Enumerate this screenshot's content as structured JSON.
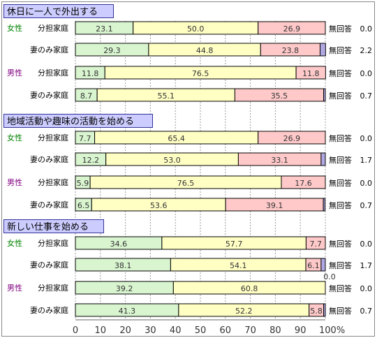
{
  "chart_data": {
    "type": "bar",
    "orientation": "horizontal",
    "stacked": true,
    "xlim": [
      0,
      100
    ],
    "x_ticks": [
      "0",
      "10",
      "20",
      "30",
      "40",
      "50",
      "60",
      "70",
      "80",
      "90",
      "100%"
    ],
    "no_answer_label": "無回答",
    "colors": {
      "segment1": "#d9f5d0",
      "segment2": "#ffffc4",
      "segment3": "#ffc9c9",
      "no_answer": "#b0a8e0",
      "female_label": "#008000",
      "male_label": "#800080",
      "section_header_bg": "#ccccff",
      "border": "#000000",
      "grid": "#999999"
    },
    "sections": [
      {
        "title": "休日に一人で外出する",
        "rows": [
          {
            "gender": "女性",
            "group": "分担家庭",
            "values": [
              23.1,
              50.0,
              26.9
            ],
            "no_answer": 0.0,
            "labels": [
              "23.1",
              "50.0",
              "26.9"
            ],
            "no_answer_label": "0.0"
          },
          {
            "gender": "",
            "group": "妻のみ家庭",
            "values": [
              29.3,
              44.8,
              23.8
            ],
            "no_answer": 2.2,
            "labels": [
              "29.3",
              "44.8",
              "23.8"
            ],
            "no_answer_label": "2.2"
          },
          {
            "gender": "男性",
            "group": "分担家庭",
            "values": [
              11.8,
              76.5,
              11.8
            ],
            "no_answer": 0.0,
            "labels": [
              "11.8",
              "76.5",
              "11.8"
            ],
            "no_answer_label": "0.0"
          },
          {
            "gender": "",
            "group": "妻のみ家庭",
            "values": [
              8.7,
              55.1,
              35.5
            ],
            "no_answer": 0.7,
            "labels": [
              "8.7",
              "55.1",
              "35.5"
            ],
            "no_answer_label": "0.7"
          }
        ]
      },
      {
        "title": "地域活動や趣味の活動を始める",
        "rows": [
          {
            "gender": "女性",
            "group": "分担家庭",
            "values": [
              7.7,
              65.4,
              26.9
            ],
            "no_answer": 0.0,
            "labels": [
              "7.7",
              "65.4",
              "26.9"
            ],
            "no_answer_label": "0.0"
          },
          {
            "gender": "",
            "group": "妻のみ家庭",
            "values": [
              12.2,
              53.0,
              33.1
            ],
            "no_answer": 1.7,
            "labels": [
              "12.2",
              "53.0",
              "33.1"
            ],
            "no_answer_label": "1.7"
          },
          {
            "gender": "男性",
            "group": "分担家庭",
            "values": [
              5.9,
              76.5,
              17.6
            ],
            "no_answer": 0.0,
            "labels": [
              "5.9",
              "76.5",
              "17.6"
            ],
            "no_answer_label": "0.0"
          },
          {
            "gender": "",
            "group": "妻のみ家庭",
            "values": [
              6.5,
              53.6,
              39.1
            ],
            "no_answer": 0.7,
            "labels": [
              "6.5",
              "53.6",
              "39.1"
            ],
            "no_answer_label": "0.7"
          }
        ]
      },
      {
        "title": "新しい仕事を始める",
        "rows": [
          {
            "gender": "女性",
            "group": "分担家庭",
            "values": [
              34.6,
              57.7,
              7.7
            ],
            "no_answer": 0.0,
            "labels": [
              "34.6",
              "57.7",
              "7.7"
            ],
            "no_answer_label": "0.0"
          },
          {
            "gender": "",
            "group": "妻のみ家庭",
            "values": [
              38.1,
              54.1,
              6.1
            ],
            "no_answer": 1.7,
            "labels": [
              "38.1",
              "54.1",
              "6.1"
            ],
            "no_answer_label": "1.7"
          },
          {
            "gender": "男性",
            "group": "分担家庭",
            "values": [
              39.2,
              60.8,
              0.0
            ],
            "no_answer": 0.0,
            "labels": [
              "39.2",
              "60.8",
              "0.0"
            ],
            "no_answer_label": "0.0"
          },
          {
            "gender": "",
            "group": "妻のみ家庭",
            "values": [
              41.3,
              52.2,
              5.8
            ],
            "no_answer": 0.7,
            "labels": [
              "41.3",
              "52.2",
              "5.8"
            ],
            "no_answer_label": "0.7"
          }
        ]
      }
    ]
  }
}
